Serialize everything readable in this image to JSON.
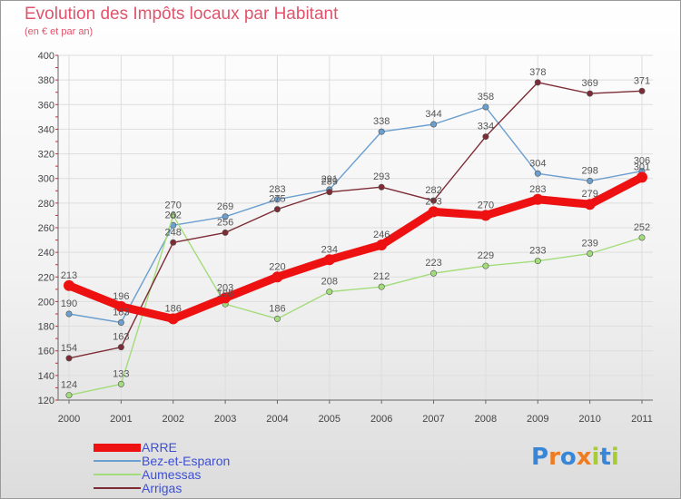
{
  "chart_data": {
    "type": "line",
    "title": "Evolution des Impôts locaux par Habitant",
    "subtitle": "(en € et par an)",
    "categories": [
      "2000",
      "2001",
      "2002",
      "2003",
      "2004",
      "2005",
      "2006",
      "2007",
      "2008",
      "2009",
      "2010",
      "2011"
    ],
    "ylim": [
      120,
      400
    ],
    "yticks": [
      120,
      140,
      160,
      180,
      200,
      220,
      240,
      260,
      280,
      300,
      320,
      340,
      360,
      380,
      400
    ],
    "series": [
      {
        "name": "ARRE",
        "color": "#ee1111",
        "weight": "thick",
        "values": [
          213,
          196,
          186,
          203,
          220,
          234,
          246,
          273,
          270,
          283,
          279,
          301
        ]
      },
      {
        "name": "Bez-et-Esparon",
        "color": "#6b9fcf",
        "weight": "thin",
        "values": [
          190,
          183,
          262,
          269,
          283,
          291,
          338,
          344,
          358,
          304,
          298,
          306
        ]
      },
      {
        "name": "Aumessas",
        "color": "#a3dc7a",
        "weight": "thin",
        "values": [
          124,
          133,
          270,
          198,
          186,
          208,
          212,
          223,
          229,
          233,
          239,
          252
        ]
      },
      {
        "name": "Arrigas",
        "color": "#7d2b34",
        "weight": "thin",
        "values": [
          154,
          163,
          248,
          256,
          275,
          289,
          293,
          282,
          334,
          378,
          369,
          371
        ]
      }
    ]
  },
  "logo": {
    "text": "Proxiti",
    "letter_colors": [
      "#3a86d6",
      "#f07c22",
      "#3a86d6",
      "#f07c22",
      "#a8cc33",
      "#3a86d6",
      "#a8cc33"
    ]
  }
}
